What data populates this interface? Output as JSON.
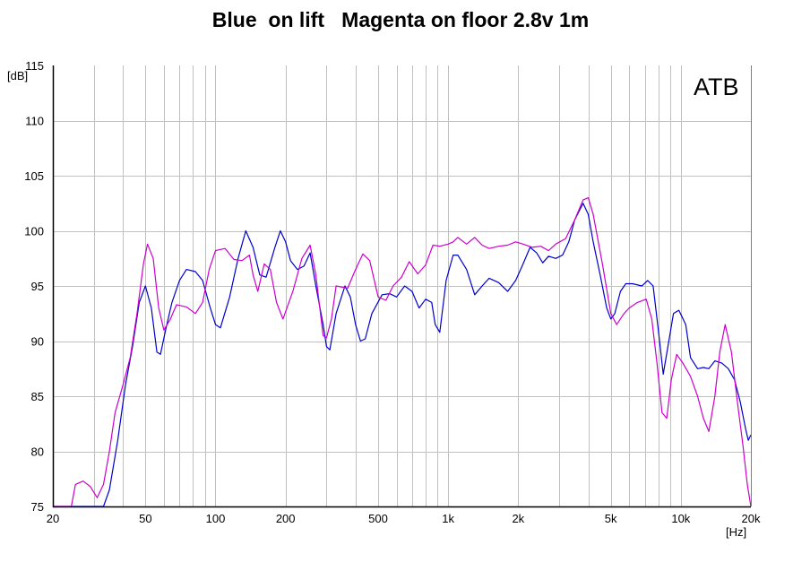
{
  "chart_data": {
    "type": "line",
    "title": "Blue  on lift   Magenta on floor 2.8v 1m",
    "corner_label": "ATB",
    "ylabel": "[dB]",
    "xlabel": "[Hz]",
    "x_scale": "log",
    "xlim": [
      20,
      20000
    ],
    "ylim": [
      75,
      115
    ],
    "grid": true,
    "x_ticks": [
      {
        "value": 20,
        "label": "20"
      },
      {
        "value": 50,
        "label": "50"
      },
      {
        "value": 100,
        "label": "100"
      },
      {
        "value": 200,
        "label": "200"
      },
      {
        "value": 500,
        "label": "500"
      },
      {
        "value": 1000,
        "label": "1k"
      },
      {
        "value": 2000,
        "label": "2k"
      },
      {
        "value": 5000,
        "label": "5k"
      },
      {
        "value": 10000,
        "label": "10k"
      },
      {
        "value": 20000,
        "label": "20k"
      }
    ],
    "y_ticks": [
      {
        "value": 75,
        "label": "75"
      },
      {
        "value": 80,
        "label": "80"
      },
      {
        "value": 85,
        "label": "85"
      },
      {
        "value": 90,
        "label": "90"
      },
      {
        "value": 95,
        "label": "95"
      },
      {
        "value": 100,
        "label": "100"
      },
      {
        "value": 105,
        "label": "105"
      },
      {
        "value": 110,
        "label": "110"
      },
      {
        "value": 115,
        "label": "115"
      }
    ],
    "series": [
      {
        "color": "#0000cc",
        "points": [
          [
            20,
            75
          ],
          [
            30,
            75
          ],
          [
            33,
            75
          ],
          [
            35,
            76.5
          ],
          [
            38,
            81
          ],
          [
            41,
            86
          ],
          [
            44,
            89.5
          ],
          [
            47,
            93.5
          ],
          [
            50,
            95
          ],
          [
            53,
            93
          ],
          [
            56,
            89
          ],
          [
            58,
            88.8
          ],
          [
            61,
            91
          ],
          [
            65,
            93.5
          ],
          [
            70,
            95.5
          ],
          [
            75,
            96.5
          ],
          [
            82,
            96.3
          ],
          [
            88,
            95.5
          ],
          [
            95,
            93
          ],
          [
            100,
            91.5
          ],
          [
            105,
            91.2
          ],
          [
            115,
            94
          ],
          [
            125,
            97.5
          ],
          [
            135,
            100
          ],
          [
            145,
            98.5
          ],
          [
            155,
            96
          ],
          [
            165,
            95.8
          ],
          [
            180,
            98.5
          ],
          [
            190,
            100
          ],
          [
            200,
            99
          ],
          [
            210,
            97.3
          ],
          [
            225,
            96.5
          ],
          [
            240,
            96.8
          ],
          [
            255,
            98
          ],
          [
            270,
            95
          ],
          [
            290,
            91.5
          ],
          [
            300,
            89.5
          ],
          [
            310,
            89.2
          ],
          [
            330,
            92.5
          ],
          [
            360,
            95
          ],
          [
            380,
            94
          ],
          [
            400,
            91.5
          ],
          [
            420,
            90
          ],
          [
            440,
            90.2
          ],
          [
            470,
            92.5
          ],
          [
            520,
            94.2
          ],
          [
            560,
            94.3
          ],
          [
            600,
            94
          ],
          [
            650,
            95
          ],
          [
            700,
            94.5
          ],
          [
            750,
            93
          ],
          [
            800,
            93.8
          ],
          [
            850,
            93.5
          ],
          [
            880,
            91.5
          ],
          [
            920,
            90.8
          ],
          [
            980,
            95.5
          ],
          [
            1050,
            97.8
          ],
          [
            1100,
            97.8
          ],
          [
            1200,
            96.5
          ],
          [
            1300,
            94.2
          ],
          [
            1400,
            95
          ],
          [
            1500,
            95.7
          ],
          [
            1650,
            95.3
          ],
          [
            1800,
            94.5
          ],
          [
            1950,
            95.5
          ],
          [
            2100,
            97
          ],
          [
            2250,
            98.5
          ],
          [
            2400,
            98
          ],
          [
            2550,
            97.1
          ],
          [
            2700,
            97.7
          ],
          [
            2900,
            97.5
          ],
          [
            3100,
            97.8
          ],
          [
            3300,
            99
          ],
          [
            3500,
            101
          ],
          [
            3800,
            102.5
          ],
          [
            4000,
            101.5
          ],
          [
            4200,
            99
          ],
          [
            4500,
            96
          ],
          [
            4800,
            93
          ],
          [
            5000,
            92
          ],
          [
            5200,
            92.5
          ],
          [
            5500,
            94.5
          ],
          [
            5800,
            95.2
          ],
          [
            6200,
            95.2
          ],
          [
            6800,
            95
          ],
          [
            7200,
            95.5
          ],
          [
            7600,
            95
          ],
          [
            8000,
            91
          ],
          [
            8400,
            87
          ],
          [
            8800,
            89.5
          ],
          [
            9300,
            92.5
          ],
          [
            9800,
            92.8
          ],
          [
            10500,
            91.5
          ],
          [
            11000,
            88.5
          ],
          [
            11800,
            87.5
          ],
          [
            12500,
            87.6
          ],
          [
            13200,
            87.5
          ],
          [
            14000,
            88.2
          ],
          [
            15000,
            88
          ],
          [
            16000,
            87.5
          ],
          [
            17000,
            86.5
          ],
          [
            18000,
            84.5
          ],
          [
            19000,
            82
          ],
          [
            19500,
            81
          ],
          [
            20000,
            81.5
          ]
        ]
      },
      {
        "color": "#cc00cc",
        "points": [
          [
            20,
            75
          ],
          [
            24,
            75
          ],
          [
            25,
            77
          ],
          [
            27,
            77.3
          ],
          [
            29,
            76.8
          ],
          [
            31,
            75.8
          ],
          [
            33,
            77
          ],
          [
            35,
            80
          ],
          [
            37,
            83.5
          ],
          [
            40,
            86
          ],
          [
            43,
            88.5
          ],
          [
            46,
            92.5
          ],
          [
            49,
            97
          ],
          [
            51,
            98.8
          ],
          [
            54,
            97.5
          ],
          [
            57,
            93
          ],
          [
            60,
            91
          ],
          [
            64,
            92
          ],
          [
            68,
            93.3
          ],
          [
            75,
            93.1
          ],
          [
            82,
            92.5
          ],
          [
            88,
            93.5
          ],
          [
            94,
            96.5
          ],
          [
            100,
            98.2
          ],
          [
            110,
            98.4
          ],
          [
            120,
            97.4
          ],
          [
            130,
            97.3
          ],
          [
            140,
            97.8
          ],
          [
            145,
            96
          ],
          [
            152,
            94.5
          ],
          [
            162,
            97
          ],
          [
            172,
            96.5
          ],
          [
            183,
            93.5
          ],
          [
            195,
            92
          ],
          [
            215,
            94.5
          ],
          [
            235,
            97.5
          ],
          [
            255,
            98.7
          ],
          [
            270,
            96
          ],
          [
            290,
            90.5
          ],
          [
            300,
            90.3
          ],
          [
            315,
            92
          ],
          [
            330,
            95
          ],
          [
            370,
            94.8
          ],
          [
            400,
            96.5
          ],
          [
            430,
            97.9
          ],
          [
            460,
            97.3
          ],
          [
            500,
            94
          ],
          [
            540,
            93.7
          ],
          [
            580,
            95
          ],
          [
            630,
            95.8
          ],
          [
            680,
            97.2
          ],
          [
            740,
            96.1
          ],
          [
            800,
            96.9
          ],
          [
            860,
            98.7
          ],
          [
            920,
            98.6
          ],
          [
            1000,
            98.8
          ],
          [
            1050,
            99
          ],
          [
            1100,
            99.4
          ],
          [
            1200,
            98.8
          ],
          [
            1300,
            99.4
          ],
          [
            1400,
            98.7
          ],
          [
            1500,
            98.4
          ],
          [
            1650,
            98.6
          ],
          [
            1800,
            98.7
          ],
          [
            1950,
            99
          ],
          [
            2100,
            98.8
          ],
          [
            2300,
            98.5
          ],
          [
            2500,
            98.6
          ],
          [
            2700,
            98.2
          ],
          [
            2900,
            98.8
          ],
          [
            3200,
            99.3
          ],
          [
            3500,
            101
          ],
          [
            3800,
            102.8
          ],
          [
            4000,
            103
          ],
          [
            4200,
            101.5
          ],
          [
            4600,
            97
          ],
          [
            5000,
            92.5
          ],
          [
            5300,
            91.5
          ],
          [
            5700,
            92.5
          ],
          [
            6000,
            93
          ],
          [
            6500,
            93.5
          ],
          [
            7100,
            93.8
          ],
          [
            7500,
            92
          ],
          [
            7900,
            88
          ],
          [
            8300,
            83.5
          ],
          [
            8700,
            83
          ],
          [
            9100,
            86.5
          ],
          [
            9600,
            88.8
          ],
          [
            10200,
            88
          ],
          [
            11000,
            86.8
          ],
          [
            11800,
            85
          ],
          [
            12500,
            83
          ],
          [
            13200,
            81.8
          ],
          [
            14000,
            85
          ],
          [
            14700,
            89
          ],
          [
            15500,
            91.5
          ],
          [
            16500,
            89
          ],
          [
            17500,
            84.5
          ],
          [
            18500,
            80.5
          ],
          [
            19300,
            77
          ],
          [
            20000,
            75
          ]
        ]
      }
    ]
  }
}
